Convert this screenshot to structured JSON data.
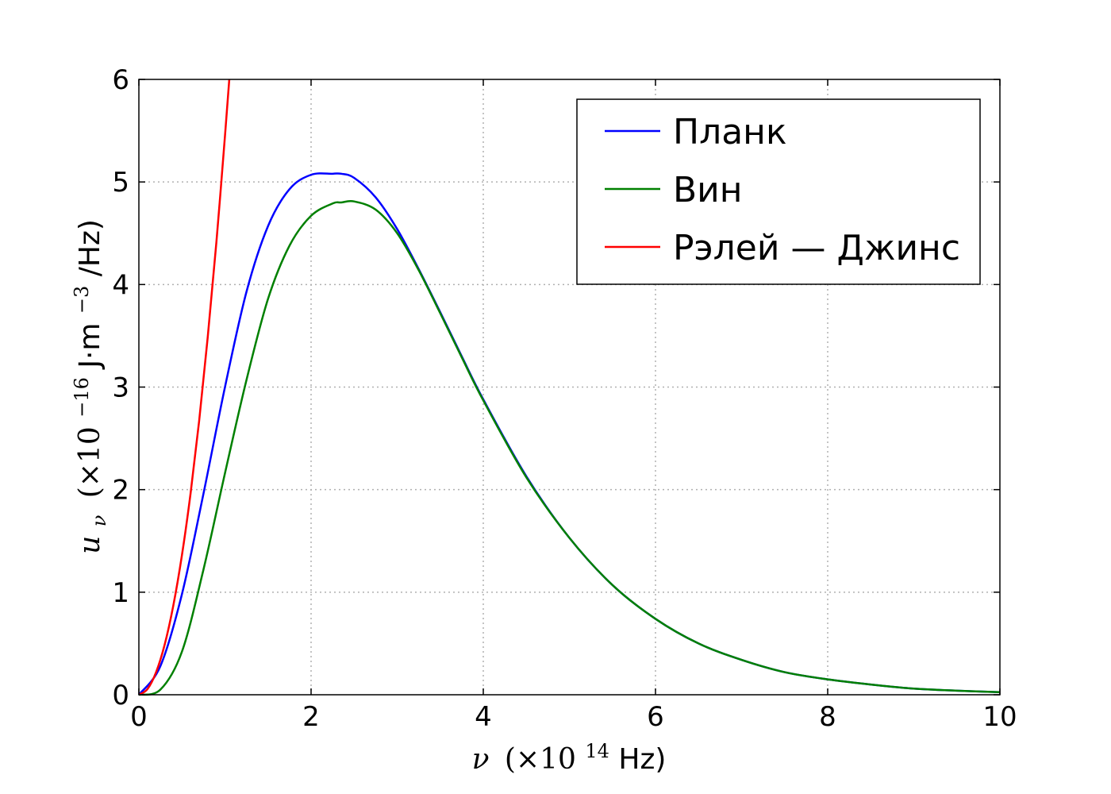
{
  "chart_data": {
    "type": "line",
    "title": "",
    "xlabel": {
      "symbol": "ν",
      "prefix": "(×10",
      "exponent": "14",
      "suffix": " Hz)"
    },
    "ylabel": {
      "symbol": "u",
      "subscript": "ν",
      "prefix": "(×10",
      "exponent": "−16",
      "units_a": " J·m",
      "units_exp": "−3",
      "units_b": "/Hz)"
    },
    "xlim": [
      0,
      10
    ],
    "ylim": [
      0,
      6
    ],
    "x_ticks": [
      "0",
      "2",
      "4",
      "6",
      "8",
      "10"
    ],
    "y_ticks": [
      "0",
      "1",
      "2",
      "3",
      "4",
      "5",
      "6"
    ],
    "grid": true,
    "legend_position": "top-right",
    "x": [
      0,
      0.25,
      0.5,
      0.75,
      1.0,
      1.25,
      1.5,
      1.75,
      2.0,
      2.25,
      2.35,
      2.5,
      2.75,
      3.0,
      3.25,
      3.5,
      3.75,
      4.0,
      4.5,
      5.0,
      5.5,
      6.0,
      6.5,
      7.0,
      7.5,
      8.0,
      8.5,
      9.0,
      9.5,
      10.0
    ],
    "series": [
      {
        "name": "Планк",
        "color": "#0000ff",
        "y": [
          0,
          0.28,
          0.98,
          1.96,
          3.0,
          3.93,
          4.57,
          4.93,
          5.07,
          5.08,
          5.08,
          5.04,
          4.85,
          4.54,
          4.15,
          3.73,
          3.3,
          2.88,
          2.13,
          1.53,
          1.07,
          0.74,
          0.5,
          0.34,
          0.22,
          0.15,
          0.1,
          0.06,
          0.04,
          0.025
        ]
      },
      {
        "name": "Вин",
        "color": "#008000",
        "y": [
          0,
          0.05,
          0.42,
          1.22,
          2.16,
          3.07,
          3.86,
          4.38,
          4.67,
          4.79,
          4.8,
          4.81,
          4.73,
          4.5,
          4.14,
          3.72,
          3.29,
          2.87,
          2.12,
          1.53,
          1.07,
          0.74,
          0.5,
          0.34,
          0.22,
          0.15,
          0.1,
          0.06,
          0.04,
          0.025
        ]
      },
      {
        "name": "Рэлей — Джинс",
        "color": "#ff0000",
        "x": [
          0,
          0.1,
          0.2,
          0.3,
          0.4,
          0.5,
          0.6,
          0.7,
          0.8,
          0.9,
          1.0,
          1.05
        ],
        "y": [
          0,
          0.055,
          0.22,
          0.49,
          0.87,
          1.36,
          1.96,
          2.67,
          3.49,
          4.41,
          5.45,
          6.0
        ]
      }
    ]
  }
}
